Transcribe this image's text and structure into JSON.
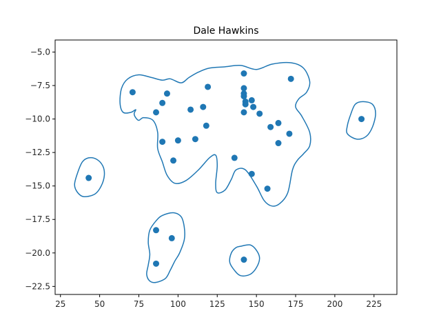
{
  "chart_data": {
    "type": "scatter",
    "title": "Dale Hawkins",
    "xlabel": "",
    "ylabel": "",
    "xlim": [
      21.6,
      239.6
    ],
    "ylim": [
      -23.1,
      -4.1
    ],
    "xticks": [
      25,
      50,
      75,
      100,
      125,
      150,
      175,
      200,
      225
    ],
    "yticks": [
      -5.0,
      -7.5,
      -10.0,
      -12.5,
      -15.0,
      -17.5,
      -20.0,
      -22.5
    ],
    "grid": false,
    "colors": {
      "points": "#1f77b4",
      "contour": "#1f77b4"
    },
    "points": [
      {
        "x": 43,
        "y": -14.4
      },
      {
        "x": 71,
        "y": -8.0
      },
      {
        "x": 86,
        "y": -9.5
      },
      {
        "x": 90,
        "y": -8.8
      },
      {
        "x": 93,
        "y": -8.1
      },
      {
        "x": 90,
        "y": -11.7
      },
      {
        "x": 97,
        "y": -13.1
      },
      {
        "x": 100,
        "y": -11.6
      },
      {
        "x": 108,
        "y": -9.3
      },
      {
        "x": 111,
        "y": -11.5
      },
      {
        "x": 116,
        "y": -9.1
      },
      {
        "x": 118,
        "y": -10.5
      },
      {
        "x": 119,
        "y": -7.6
      },
      {
        "x": 136,
        "y": -12.9
      },
      {
        "x": 142,
        "y": -6.6
      },
      {
        "x": 142,
        "y": -7.7
      },
      {
        "x": 142,
        "y": -8.1
      },
      {
        "x": 142,
        "y": -8.3
      },
      {
        "x": 143,
        "y": -8.7
      },
      {
        "x": 143,
        "y": -8.9
      },
      {
        "x": 142,
        "y": -9.5
      },
      {
        "x": 147,
        "y": -8.6
      },
      {
        "x": 148,
        "y": -9.1
      },
      {
        "x": 152,
        "y": -9.6
      },
      {
        "x": 159,
        "y": -10.6
      },
      {
        "x": 164,
        "y": -10.3
      },
      {
        "x": 164,
        "y": -11.8
      },
      {
        "x": 171,
        "y": -11.1
      },
      {
        "x": 172,
        "y": -7.0
      },
      {
        "x": 147,
        "y": -14.1
      },
      {
        "x": 157,
        "y": -15.2
      },
      {
        "x": 217,
        "y": -10.0
      },
      {
        "x": 86,
        "y": -18.3
      },
      {
        "x": 96,
        "y": -18.9
      },
      {
        "x": 86,
        "y": -20.8
      },
      {
        "x": 142,
        "y": -20.5
      }
    ],
    "contours": [
      [
        [
          140,
          -6.0
        ],
        [
          150,
          -6.3
        ],
        [
          160,
          -5.9
        ],
        [
          172,
          -5.8
        ],
        [
          180,
          -6.2
        ],
        [
          184,
          -7.2
        ],
        [
          182,
          -8.0
        ],
        [
          177,
          -8.5
        ],
        [
          175,
          -9.1
        ],
        [
          179,
          -9.8
        ],
        [
          184,
          -11.0
        ],
        [
          184,
          -12.0
        ],
        [
          180,
          -12.6
        ],
        [
          176,
          -13.1
        ],
        [
          173,
          -13.8
        ],
        [
          170,
          -15.5
        ],
        [
          165,
          -16.3
        ],
        [
          160,
          -16.5
        ],
        [
          155,
          -16.1
        ],
        [
          150,
          -15.0
        ],
        [
          143,
          -13.8
        ],
        [
          137,
          -13.8
        ],
        [
          134,
          -14.5
        ],
        [
          130,
          -15.3
        ],
        [
          125,
          -15.5
        ],
        [
          124,
          -14.8
        ],
        [
          125,
          -13.5
        ],
        [
          124,
          -12.7
        ],
        [
          120,
          -12.9
        ],
        [
          113,
          -13.8
        ],
        [
          105,
          -14.6
        ],
        [
          98,
          -14.8
        ],
        [
          93,
          -14.2
        ],
        [
          90,
          -13.2
        ],
        [
          87,
          -12.2
        ],
        [
          87,
          -11.0
        ],
        [
          84,
          -10.1
        ],
        [
          78,
          -9.9
        ],
        [
          75,
          -10.1
        ],
        [
          73,
          -9.9
        ],
        [
          72,
          -9.6
        ],
        [
          73,
          -9.3
        ],
        [
          70,
          -9.5
        ],
        [
          65,
          -9.5
        ],
        [
          63,
          -8.8
        ],
        [
          64,
          -7.7
        ],
        [
          68,
          -7.0
        ],
        [
          75,
          -6.7
        ],
        [
          83,
          -6.9
        ],
        [
          90,
          -7.1
        ],
        [
          95,
          -7.0
        ],
        [
          102,
          -7.3
        ],
        [
          107,
          -6.9
        ],
        [
          113,
          -6.5
        ],
        [
          120,
          -6.2
        ],
        [
          130,
          -6.1
        ]
      ],
      [
        [
          39,
          -13.2
        ],
        [
          43,
          -12.9
        ],
        [
          48,
          -13.0
        ],
        [
          52,
          -13.5
        ],
        [
          53,
          -14.2
        ],
        [
          51,
          -15.0
        ],
        [
          47,
          -15.6
        ],
        [
          40,
          -15.8
        ],
        [
          36,
          -15.5
        ],
        [
          34,
          -14.9
        ],
        [
          36,
          -14.0
        ]
      ],
      [
        [
          213,
          -8.9
        ],
        [
          218,
          -8.7
        ],
        [
          224,
          -8.9
        ],
        [
          226,
          -9.6
        ],
        [
          224,
          -10.6
        ],
        [
          220,
          -11.3
        ],
        [
          214,
          -11.5
        ],
        [
          208,
          -11.1
        ],
        [
          208,
          -10.5
        ],
        [
          210,
          -9.7
        ]
      ],
      [
        [
          90,
          -17.2
        ],
        [
          97,
          -17.0
        ],
        [
          102,
          -17.3
        ],
        [
          104,
          -18.1
        ],
        [
          104,
          -19.0
        ],
        [
          101,
          -20.0
        ],
        [
          98,
          -20.6
        ],
        [
          95,
          -21.3
        ],
        [
          92,
          -21.9
        ],
        [
          86,
          -22.2
        ],
        [
          82,
          -22.1
        ],
        [
          80,
          -21.6
        ],
        [
          81,
          -20.9
        ],
        [
          82,
          -20.1
        ],
        [
          81,
          -19.2
        ],
        [
          82,
          -18.3
        ],
        [
          86,
          -17.6
        ]
      ],
      [
        [
          140,
          -19.5
        ],
        [
          146,
          -19.4
        ],
        [
          150,
          -19.8
        ],
        [
          152,
          -20.4
        ],
        [
          150,
          -21.1
        ],
        [
          146,
          -21.6
        ],
        [
          140,
          -21.7
        ],
        [
          136,
          -21.3
        ],
        [
          133,
          -20.7
        ],
        [
          134,
          -20.0
        ],
        [
          137,
          -19.6
        ]
      ]
    ]
  }
}
